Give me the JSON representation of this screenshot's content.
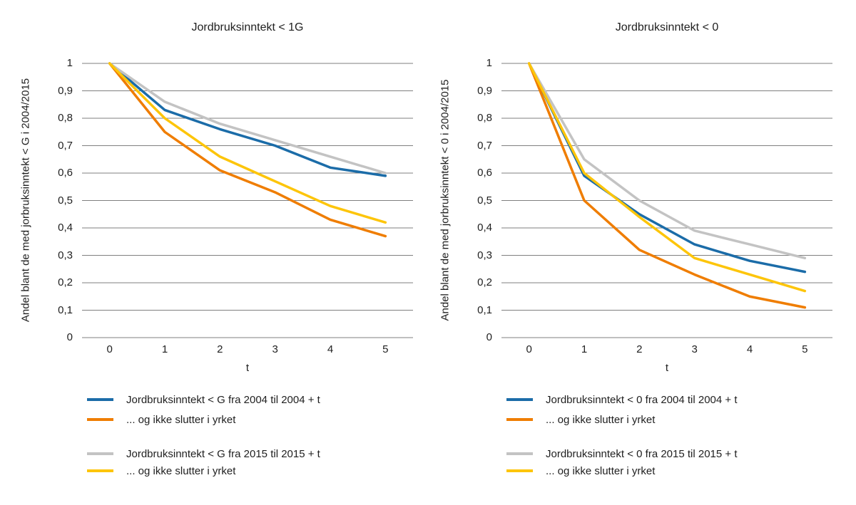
{
  "page": {
    "background": "#ffffff"
  },
  "colors": {
    "blue": "#1b6ca8",
    "orange": "#ef7d00",
    "gray": "#c3c3c3",
    "yellow": "#fdc50a",
    "gridline": "#7f7f7f",
    "text": "#1f1f1f"
  },
  "chart_data": [
    {
      "type": "line",
      "title": "Jordbruksinntekt < 1G",
      "xlabel": "t",
      "ylabel": "Andel blant de med jorbruksinntekt < G i 2004/2015",
      "x": [
        0,
        1,
        2,
        3,
        4,
        5
      ],
      "x_tick_labels": [
        "0",
        "1",
        "2",
        "3",
        "4",
        "5"
      ],
      "y_tick_labels": [
        "1",
        "0,9",
        "0,8",
        "0,7",
        "0,6",
        "0,5",
        "0,4",
        "0,3",
        "0,2",
        "0,1",
        "0"
      ],
      "ylim": [
        0,
        1
      ],
      "grid": true,
      "legend_position": "bottom",
      "legend_groups": [
        [
          0,
          1
        ],
        [
          2,
          3
        ]
      ],
      "series": [
        {
          "name": "Jordbruksinntekt < G fra 2004 til 2004 + t",
          "color_key": "blue",
          "values": [
            1,
            0.83,
            0.76,
            0.7,
            0.62,
            0.59
          ]
        },
        {
          "name": "... og ikke slutter i yrket",
          "color_key": "orange",
          "values": [
            1,
            0.75,
            0.61,
            0.53,
            0.43,
            0.37
          ]
        },
        {
          "name": "Jordbruksinntekt < G fra 2015 til 2015 + t",
          "color_key": "gray",
          "values": [
            1,
            0.86,
            0.78,
            0.72,
            0.66,
            0.6
          ]
        },
        {
          "name": "... og ikke slutter i yrket",
          "color_key": "yellow",
          "values": [
            1,
            0.8,
            0.66,
            0.57,
            0.48,
            0.42
          ]
        }
      ]
    },
    {
      "type": "line",
      "title": "Jordbruksinntekt < 0",
      "xlabel": "t",
      "ylabel": "Andel blant de med jorbruksinntekt < 0 i 2004/2015",
      "x": [
        0,
        1,
        2,
        3,
        4,
        5
      ],
      "x_tick_labels": [
        "0",
        "1",
        "2",
        "3",
        "4",
        "5"
      ],
      "y_tick_labels": [
        "1",
        "0,9",
        "0,8",
        "0,7",
        "0,6",
        "0,5",
        "0,4",
        "0,3",
        "0,2",
        "0,1",
        "0"
      ],
      "ylim": [
        0,
        1
      ],
      "grid": true,
      "legend_position": "bottom",
      "legend_groups": [
        [
          0,
          1
        ],
        [
          2,
          3
        ]
      ],
      "series": [
        {
          "name": "Jordbruksinntekt < 0 fra 2004 til 2004 + t",
          "color_key": "blue",
          "values": [
            1,
            0.59,
            0.45,
            0.34,
            0.28,
            0.24
          ]
        },
        {
          "name": "... og ikke slutter i yrket",
          "color_key": "orange",
          "values": [
            1,
            0.5,
            0.32,
            0.23,
            0.15,
            0.11
          ]
        },
        {
          "name": "Jordbruksinntekt < 0 fra 2015 til 2015 + t",
          "color_key": "gray",
          "values": [
            1,
            0.65,
            0.5,
            0.39,
            0.34,
            0.29
          ]
        },
        {
          "name": "... og ikke slutter i yrket",
          "color_key": "yellow",
          "values": [
            1,
            0.6,
            0.44,
            0.29,
            0.23,
            0.17
          ]
        }
      ]
    }
  ]
}
